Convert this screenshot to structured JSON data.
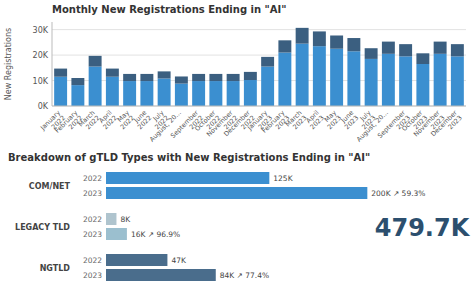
{
  "chart_data": [
    {
      "type": "bar",
      "stacked": true,
      "title": "Monthly New Registrations Ending in \"AI\"",
      "y_label": "New Registrations",
      "categories": [
        "January\n2022",
        "February\n2022",
        "March\n2022",
        "April\n2022",
        "May\n2022",
        "June\n2022",
        "July\n2022",
        "August, 20...",
        "September\n2022",
        "October\n2022",
        "November\n2022",
        "December\n2022",
        "January\n2023",
        "February\n2023",
        "March\n2023",
        "April\n2023",
        "May\n2023",
        "June\n2023",
        "July\n2023",
        "August, 20...",
        "September\n2023",
        "October\n2023",
        "November\n2023",
        "December\n2023"
      ],
      "series": [
        {
          "color": "#3b8fd0",
          "values": [
            11500,
            8200,
            15500,
            11500,
            9800,
            9800,
            10800,
            8800,
            9800,
            9800,
            9800,
            10200,
            15500,
            21000,
            24500,
            23500,
            22500,
            21500,
            18500,
            20500,
            19500,
            16500,
            20500,
            19500
          ]
        },
        {
          "color": "#3b5f80",
          "values": [
            3200,
            2800,
            4200,
            3200,
            2800,
            2800,
            2800,
            2800,
            2800,
            2800,
            2800,
            3200,
            3800,
            4800,
            6200,
            5800,
            5200,
            5200,
            4200,
            4800,
            4800,
            4200,
            4800,
            4800
          ]
        }
      ],
      "ylim": [
        0,
        33000
      ],
      "yticks": [
        {
          "value": 0,
          "label": "0K"
        },
        {
          "value": 10000,
          "label": "10K"
        },
        {
          "value": 20000,
          "label": "20K"
        },
        {
          "value": 30000,
          "label": "30K"
        }
      ],
      "grid": true
    },
    {
      "type": "bar",
      "orientation": "horizontal",
      "title": "Breakdown of gTLD Types with New Registrations Ending in \"AI\"",
      "categories": [
        "COM/NET",
        "LEGACY TLD",
        "NGTLD"
      ],
      "series": [
        {
          "name": "2022",
          "colors": [
            "#3b8fd0",
            "#afc4ce",
            "#4a6d8c"
          ],
          "values": [
            125000,
            8000,
            47000
          ],
          "value_labels": [
            "125K",
            "8K",
            "47K"
          ]
        },
        {
          "name": "2023",
          "colors": [
            "#3b8fd0",
            "#9bbfcf",
            "#4a6d8c"
          ],
          "values": [
            200000,
            16000,
            84000
          ],
          "value_labels": [
            "200K ↗ 59.3%",
            "16K ↗ 96.9%",
            "84K ↗ 77.4%"
          ]
        }
      ],
      "xlim": [
        0,
        225000
      ],
      "data_labels": true,
      "tick_labels": false,
      "annotation": "479.7K"
    }
  ]
}
